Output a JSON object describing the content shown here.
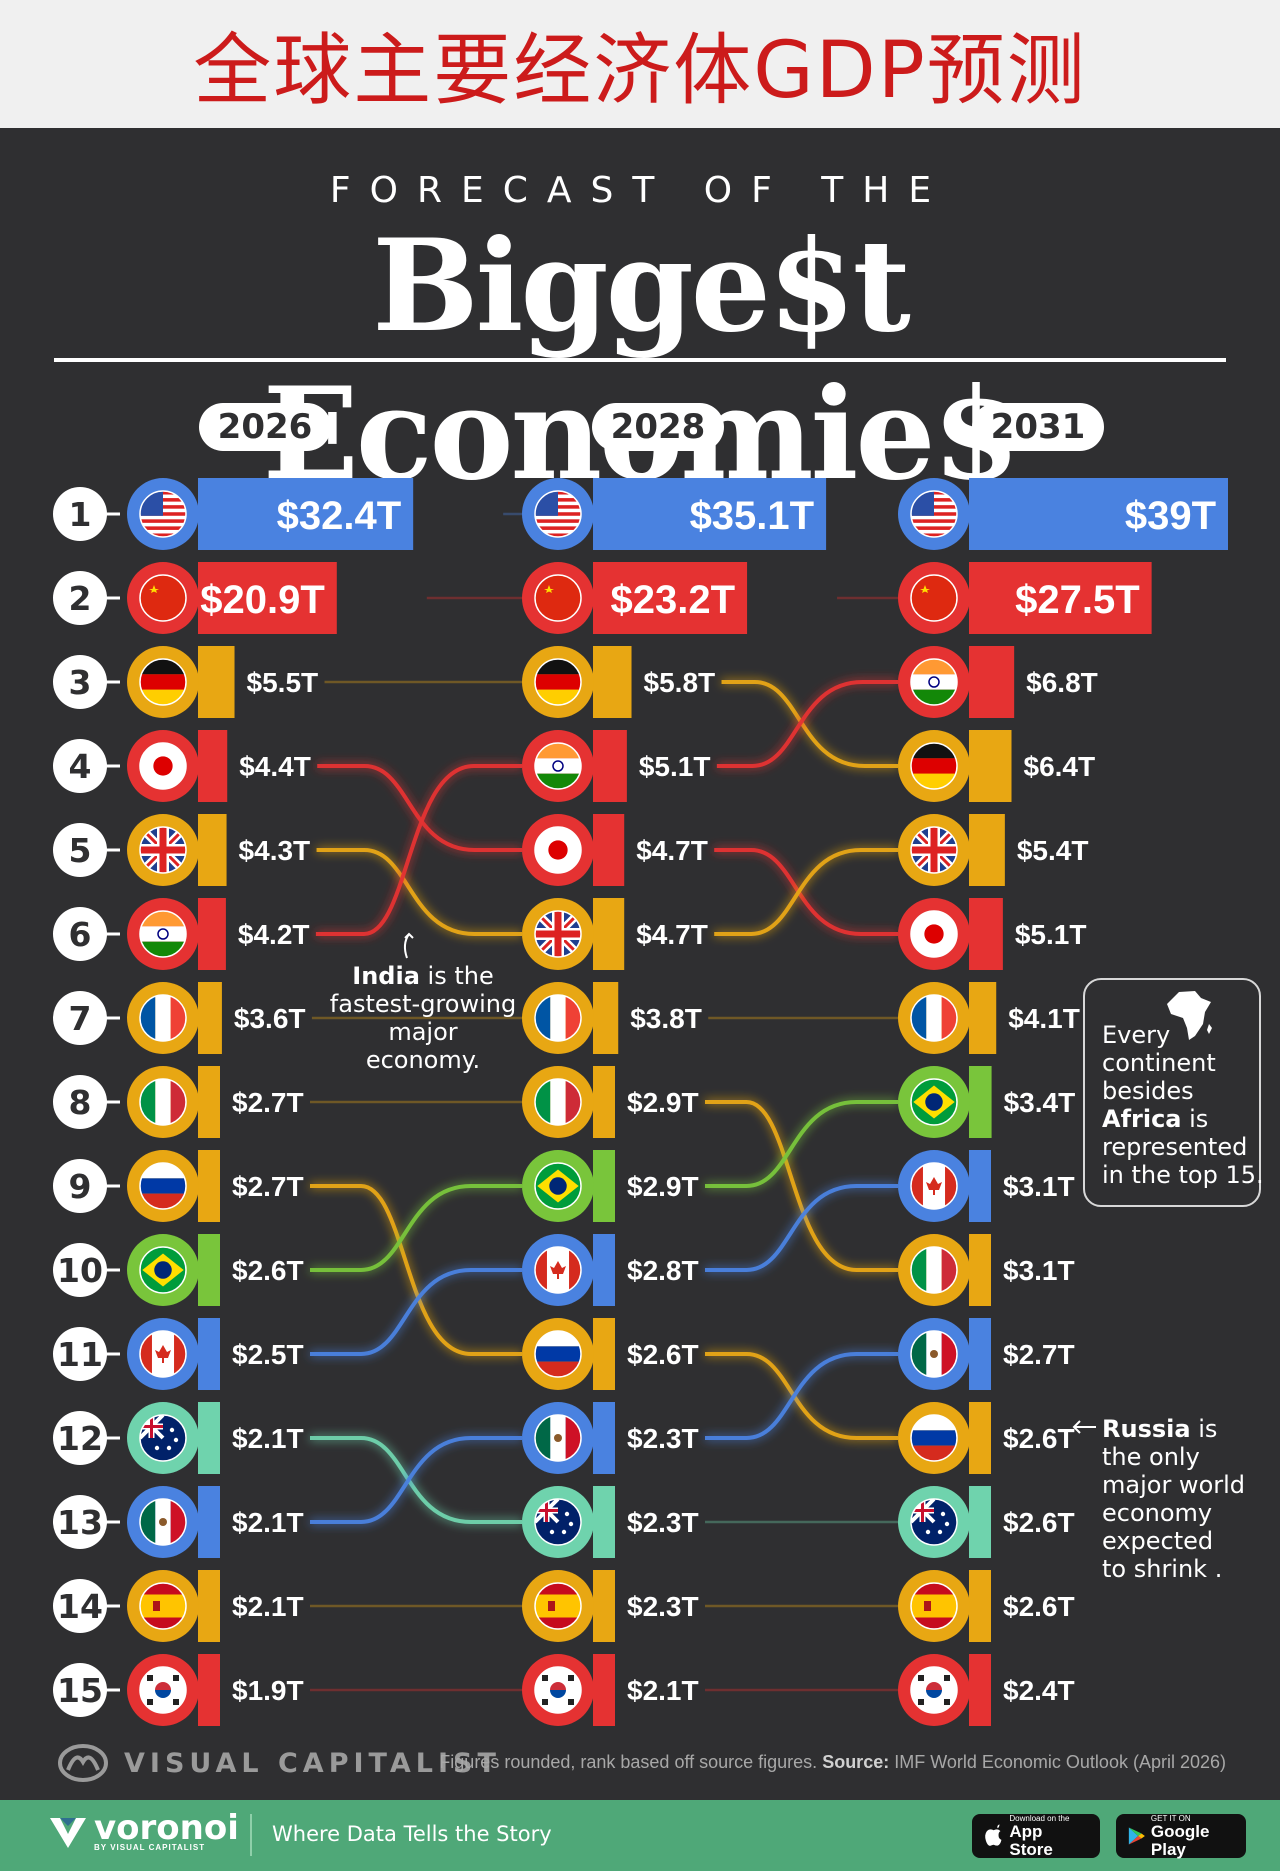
{
  "banner": {
    "title": "全球主要经济体GDP预测"
  },
  "header": {
    "kicker": "FORECAST OF THE",
    "headline": "Bigge$t Economie$"
  },
  "chart_data": {
    "type": "bump",
    "unit": "USD trillions",
    "years": [
      "2026",
      "2028",
      "2031"
    ],
    "ranks": [
      "1",
      "2",
      "3",
      "4",
      "5",
      "6",
      "7",
      "8",
      "9",
      "10",
      "11",
      "12",
      "13",
      "14",
      "15"
    ],
    "countries": [
      {
        "name": "United States",
        "flag": "us-flag-icon",
        "color": "#4a82e0",
        "ranks": [
          1,
          1,
          1
        ],
        "values": [
          32.4,
          35.1,
          39
        ],
        "labels": [
          "$32.4T",
          "$35.1T",
          "$39T"
        ]
      },
      {
        "name": "China",
        "flag": "china-flag-icon",
        "color": "#e53232",
        "ranks": [
          2,
          2,
          2
        ],
        "values": [
          20.9,
          23.2,
          27.5
        ],
        "labels": [
          "$20.9T",
          "$23.2T",
          "$27.5T"
        ]
      },
      {
        "name": "Germany",
        "flag": "germany-flag-icon",
        "color": "#e8a713",
        "ranks": [
          3,
          3,
          4
        ],
        "values": [
          5.5,
          5.8,
          6.4
        ],
        "labels": [
          "$5.5T",
          "$5.8T",
          "$6.4T"
        ]
      },
      {
        "name": "Japan",
        "flag": "japan-flag-icon",
        "color": "#e53232",
        "ranks": [
          4,
          5,
          6
        ],
        "values": [
          4.4,
          4.7,
          5.1
        ],
        "labels": [
          "$4.4T",
          "$4.7T",
          "$5.1T"
        ]
      },
      {
        "name": "United Kingdom",
        "flag": "uk-flag-icon",
        "color": "#e8a713",
        "ranks": [
          5,
          6,
          5
        ],
        "values": [
          4.3,
          4.7,
          5.4
        ],
        "labels": [
          "$4.3T",
          "$4.7T",
          "$5.4T"
        ]
      },
      {
        "name": "India",
        "flag": "india-flag-icon",
        "color": "#e53232",
        "ranks": [
          6,
          4,
          3
        ],
        "values": [
          4.2,
          5.1,
          6.8
        ],
        "labels": [
          "$4.2T",
          "$5.1T",
          "$6.8T"
        ]
      },
      {
        "name": "France",
        "flag": "france-flag-icon",
        "color": "#e8a713",
        "ranks": [
          7,
          7,
          7
        ],
        "values": [
          3.6,
          3.8,
          4.1
        ],
        "labels": [
          "$3.6T",
          "$3.8T",
          "$4.1T"
        ]
      },
      {
        "name": "Italy",
        "flag": "italy-flag-icon",
        "color": "#e8a713",
        "ranks": [
          8,
          8,
          10
        ],
        "values": [
          2.7,
          2.9,
          3.1
        ],
        "labels": [
          "$2.7T",
          "$2.9T",
          "$3.1T"
        ]
      },
      {
        "name": "Russia",
        "flag": "russia-flag-icon",
        "color": "#e8a713",
        "ranks": [
          9,
          11,
          12
        ],
        "values": [
          2.7,
          2.6,
          2.6
        ],
        "labels": [
          "$2.7T",
          "$2.6T",
          "$2.6T"
        ]
      },
      {
        "name": "Brazil",
        "flag": "brazil-flag-icon",
        "color": "#79c53b",
        "ranks": [
          10,
          9,
          8
        ],
        "values": [
          2.6,
          2.9,
          3.4
        ],
        "labels": [
          "$2.6T",
          "$2.9T",
          "$3.4T"
        ]
      },
      {
        "name": "Canada",
        "flag": "canada-flag-icon",
        "color": "#4a82e0",
        "ranks": [
          11,
          10,
          9
        ],
        "values": [
          2.5,
          2.8,
          3.1
        ],
        "labels": [
          "$2.5T",
          "$2.8T",
          "$3.1T"
        ]
      },
      {
        "name": "Australia",
        "flag": "australia-flag-icon",
        "color": "#6fd3ad",
        "ranks": [
          12,
          13,
          13
        ],
        "values": [
          2.1,
          2.3,
          2.6
        ],
        "labels": [
          "$2.1T",
          "$2.3T",
          "$2.6T"
        ]
      },
      {
        "name": "Mexico",
        "flag": "mexico-flag-icon",
        "color": "#4a82e0",
        "ranks": [
          13,
          12,
          11
        ],
        "values": [
          2.1,
          2.3,
          2.7
        ],
        "labels": [
          "$2.1T",
          "$2.3T",
          "$2.7T"
        ]
      },
      {
        "name": "Spain",
        "flag": "spain-flag-icon",
        "color": "#e8a713",
        "ranks": [
          14,
          14,
          14
        ],
        "values": [
          2.1,
          2.3,
          2.6
        ],
        "labels": [
          "$2.1T",
          "$2.3T",
          "$2.6T"
        ]
      },
      {
        "name": "South Korea",
        "flag": "korea-flag-icon",
        "color": "#e53232",
        "ranks": [
          15,
          15,
          15
        ],
        "values": [
          1.9,
          2.1,
          2.4
        ],
        "labels": [
          "$1.9T",
          "$2.1T",
          "$2.4T"
        ]
      }
    ]
  },
  "annotations": {
    "india": {
      "bold": "India",
      "rest": " is the",
      "line2": "fastest-growing",
      "line3": "major economy."
    },
    "africa": {
      "line1": "Every",
      "line2": "continent",
      "line3": "besides",
      "bold": "Africa",
      "line4": " is",
      "line5": "represented",
      "line6": "in the top 15."
    },
    "russia": {
      "bold": "Russia",
      "line1": " is",
      "line2": "the only",
      "line3": "major world",
      "line4": "economy",
      "line5": "expected",
      "line6": "to shrink ."
    }
  },
  "footer": {
    "brand": "VISUAL CAPITALIST",
    "note_prefix": "Figures rounded, rank based off source figures. ",
    "source_label": "Source:",
    "source_text": " IMF World Economic Outlook (April 2026)"
  },
  "bottom_bar": {
    "brand": "voronoi",
    "brand_sub": "BY VISUAL CAPITALIST",
    "tagline": "Where Data Tells the Story",
    "appstore_small": "Download on the",
    "appstore_big": "App Store",
    "googleplay_small": "GET IT ON",
    "googleplay_big": "Google Play"
  }
}
